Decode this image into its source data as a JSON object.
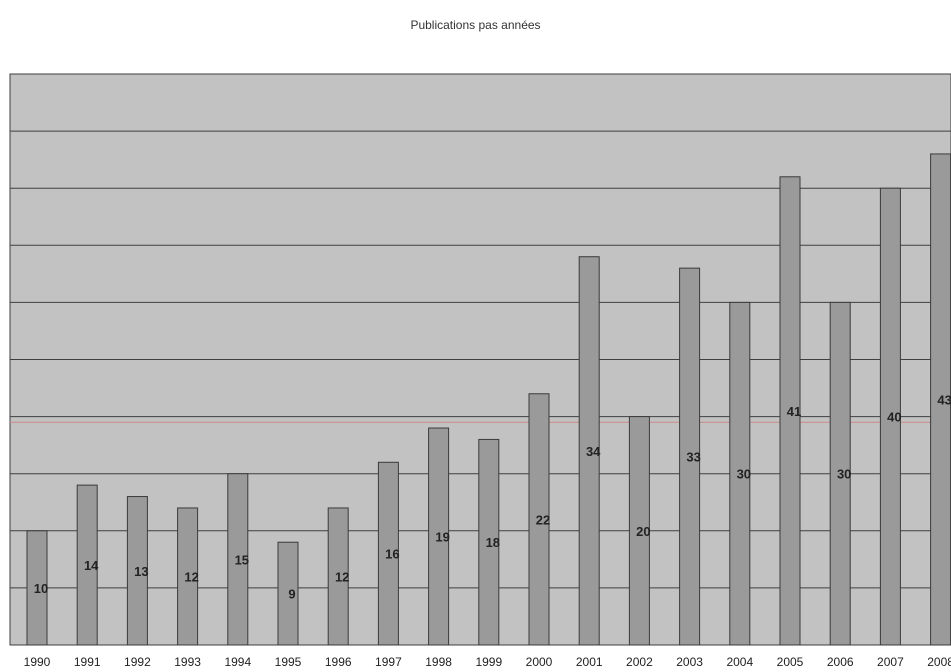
{
  "chart_data": {
    "type": "bar",
    "title": "Publications pas années",
    "xlabel": "",
    "ylabel": "",
    "categories": [
      "1990",
      "1991",
      "1992",
      "1993",
      "1994",
      "1995",
      "1996",
      "1997",
      "1998",
      "1999",
      "2000",
      "2001",
      "2002",
      "2003",
      "2004",
      "2005",
      "2006",
      "2007",
      "2008"
    ],
    "values": [
      10,
      14,
      13,
      12,
      15,
      9,
      12,
      16,
      19,
      18,
      22,
      34,
      20,
      33,
      30,
      41,
      30,
      40,
      43
    ],
    "data_labels": [
      "10",
      "14",
      "13",
      "12",
      "15",
      "9",
      "12",
      "16",
      "19",
      "18",
      "22",
      "34",
      "20",
      "33",
      "30",
      "41",
      "30",
      "40",
      "43"
    ],
    "ylim": [
      0,
      50
    ],
    "grid": true,
    "legend": "none",
    "colors": {
      "plot_background": "#c2c2c2",
      "bar_fill": "#9a9a9a",
      "bar_stroke": "#3a3a3a",
      "gridline": "#3f3f3f",
      "highlight_line": "#c98a8a",
      "label_text": "#222222"
    }
  }
}
